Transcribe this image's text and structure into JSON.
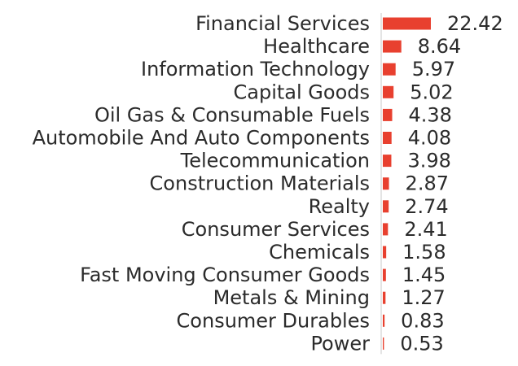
{
  "chart_data": {
    "type": "bar",
    "orientation": "horizontal",
    "bar_color": "#e8402f",
    "axis_color": "#c8c8c8",
    "categories": [
      "Financial Services",
      "Healthcare",
      "Information Technology",
      "Capital Goods",
      "Oil Gas & Consumable Fuels",
      "Automobile And Auto Components",
      "Telecommunication",
      "Construction Materials",
      "Realty",
      "Consumer Services",
      "Chemicals",
      "Fast Moving Consumer Goods",
      "Metals & Mining",
      "Consumer Durables",
      "Power"
    ],
    "values": [
      22.42,
      8.64,
      5.97,
      5.02,
      4.38,
      4.08,
      3.98,
      2.87,
      2.74,
      2.41,
      1.58,
      1.45,
      1.27,
      0.83,
      0.53
    ],
    "value_labels": [
      "22.42",
      "8.64",
      "5.97",
      "5.02",
      "4.38",
      "4.08",
      "3.98",
      "2.87",
      "2.74",
      "2.41",
      "1.58",
      "1.45",
      "1.27",
      "0.83",
      "0.53"
    ],
    "xlim": [
      0,
      22.42
    ],
    "grid": false,
    "legend": "none"
  }
}
